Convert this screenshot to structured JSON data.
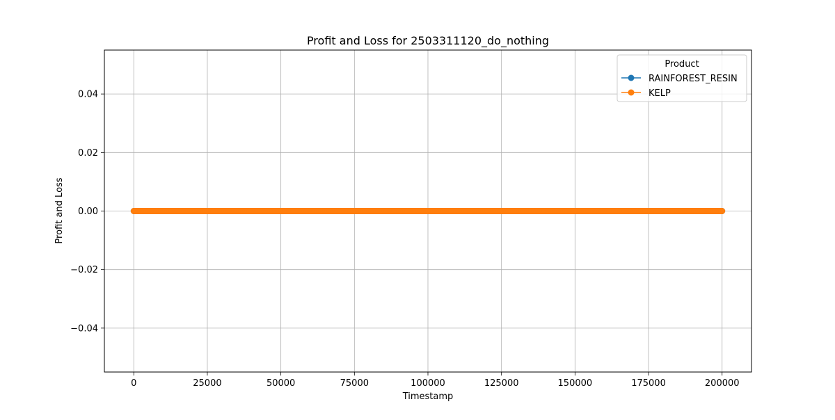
{
  "chart_data": {
    "type": "line",
    "title": "Profit and Loss for 2503311120_do_nothing",
    "xlabel": "Timestamp",
    "ylabel": "Profit and Loss",
    "xlim": [
      -10000,
      210000
    ],
    "ylim": [
      -0.055,
      0.055
    ],
    "xticks": [
      0,
      25000,
      50000,
      75000,
      100000,
      125000,
      150000,
      175000,
      200000
    ],
    "xtick_labels": [
      "0",
      "25000",
      "50000",
      "75000",
      "100000",
      "125000",
      "150000",
      "175000",
      "200000"
    ],
    "yticks": [
      0.04,
      0.02,
      0.0,
      -0.02,
      -0.04
    ],
    "ytick_labels": [
      "0.04",
      "0.02",
      "0.00",
      "−0.02",
      "−0.04"
    ],
    "grid": true,
    "legend": {
      "title": "Product",
      "position": "top-right"
    },
    "x_range": {
      "start": 0,
      "end": 200000,
      "step": 100
    },
    "series": [
      {
        "name": "RAINFOREST_RESIN",
        "color": "#1f77b4",
        "constant_value": 0.0,
        "marker": "circle"
      },
      {
        "name": "KELP",
        "color": "#ff7f0e",
        "constant_value": 0.0,
        "marker": "circle"
      }
    ]
  }
}
